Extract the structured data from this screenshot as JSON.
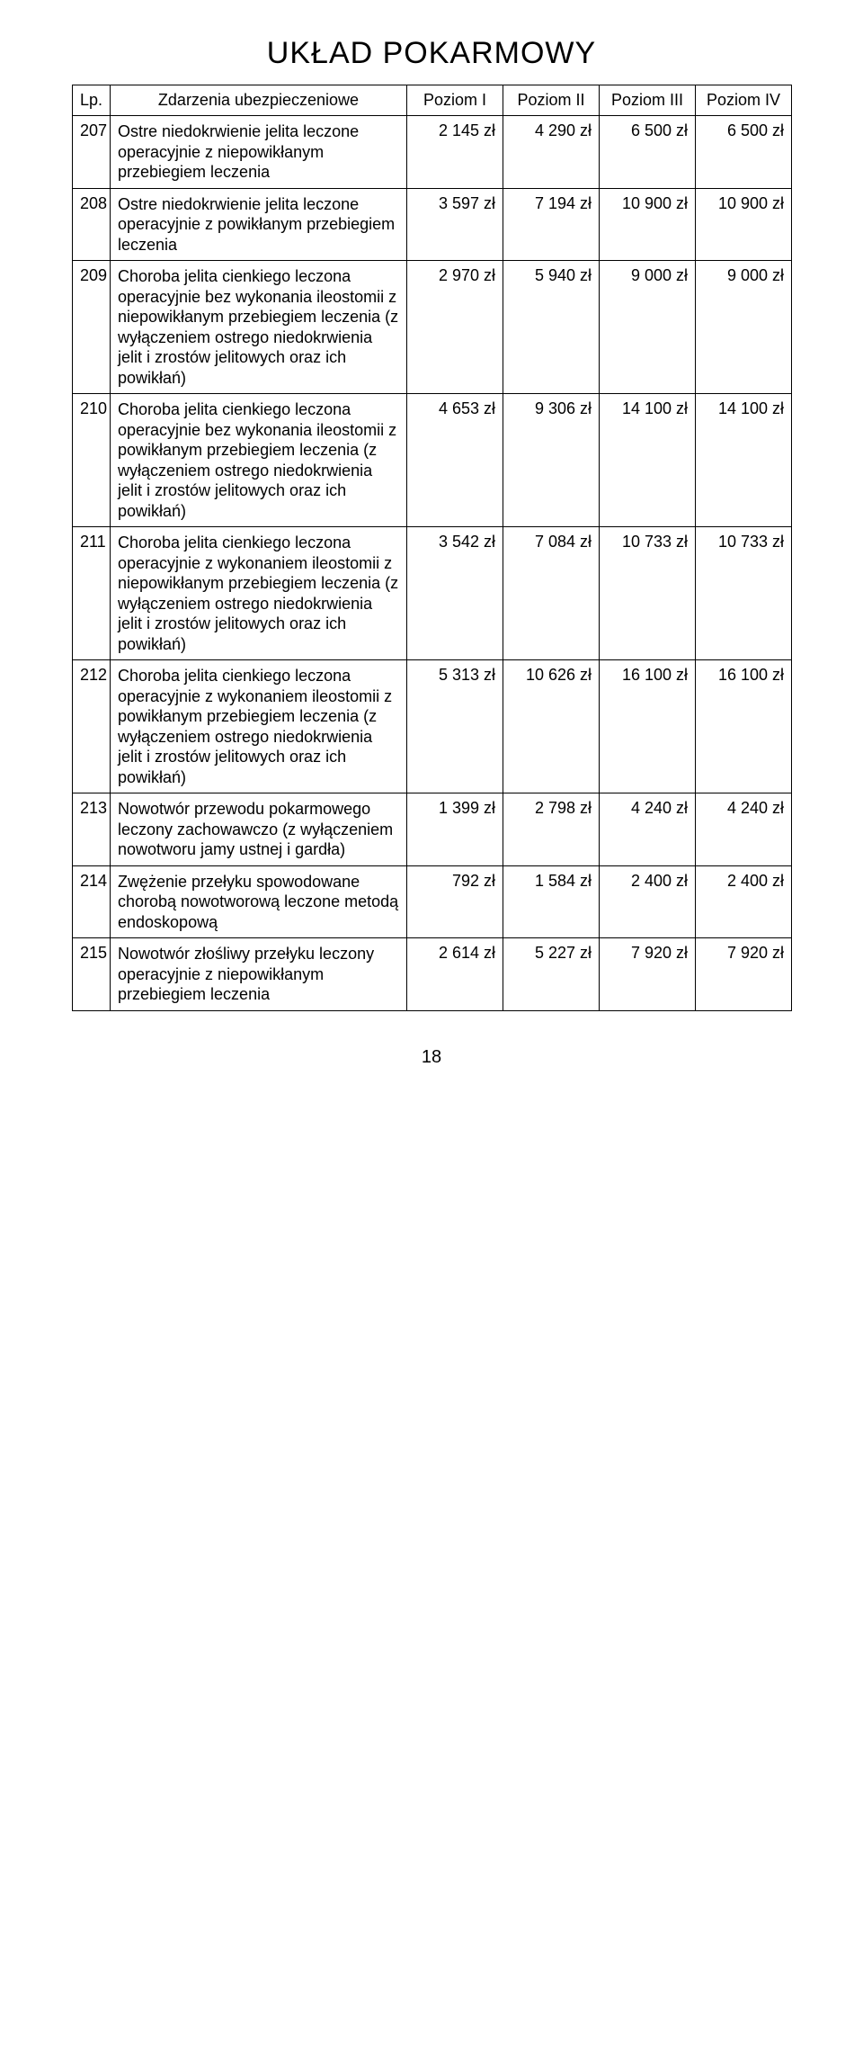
{
  "title": "UKŁAD POKARMOWY",
  "page_number": "18",
  "columns": {
    "lp": "Lp.",
    "desc": "Zdarzenia ubezpieczeniowe",
    "l1": "Poziom I",
    "l2": "Poziom II",
    "l3": "Poziom III",
    "l4": "Poziom IV"
  },
  "rows": [
    {
      "lp": "207",
      "desc": "Ostre niedokrwienie jelita leczone operacyjnie z niepowikłanym przebiegiem leczenia",
      "l1": "2 145 zł",
      "l2": "4 290 zł",
      "l3": "6 500 zł",
      "l4": "6 500 zł"
    },
    {
      "lp": "208",
      "desc": "Ostre niedokrwienie jelita leczone operacyjnie z powikłanym przebiegiem leczenia",
      "l1": "3 597 zł",
      "l2": "7 194 zł",
      "l3": "10 900 zł",
      "l4": "10 900 zł"
    },
    {
      "lp": "209",
      "desc": "Choroba jelita cienkiego leczona operacyjnie bez wykonania ileostomii z niepowikłanym przebiegiem leczenia (z wyłączeniem ostrego niedokrwienia jelit i zrostów jelitowych oraz ich powikłań)",
      "l1": "2 970 zł",
      "l2": "5 940 zł",
      "l3": "9 000 zł",
      "l4": "9 000 zł"
    },
    {
      "lp": "210",
      "desc": "Choroba jelita cienkiego leczona operacyjnie bez wykonania ileostomii z powikłanym przebiegiem leczenia (z wyłączeniem ostrego niedokrwienia jelit i zrostów jelitowych oraz ich powikłań)",
      "l1": "4 653 zł",
      "l2": "9 306 zł",
      "l3": "14 100 zł",
      "l4": "14 100 zł"
    },
    {
      "lp": "211",
      "desc": "Choroba jelita cienkiego leczona operacyjnie z wykonaniem ileostomii z niepowikłanym przebiegiem leczenia (z wyłączeniem ostrego niedokrwienia jelit i zrostów jelitowych oraz ich powikłań)",
      "l1": "3 542 zł",
      "l2": "7 084 zł",
      "l3": "10 733 zł",
      "l4": "10 733 zł"
    },
    {
      "lp": "212",
      "desc": "Choroba jelita cienkiego leczona operacyjnie z wykonaniem ileostomii z powikłanym przebiegiem leczenia (z wyłączeniem ostrego niedokrwienia jelit i zrostów jelitowych oraz ich powikłań)",
      "l1": "5 313 zł",
      "l2": "10 626 zł",
      "l3": "16 100 zł",
      "l4": "16 100 zł"
    },
    {
      "lp": "213",
      "desc": "Nowotwór przewodu pokarmowego leczony zachowawczo (z wyłączeniem nowotworu jamy ustnej i gardła)",
      "l1": "1 399 zł",
      "l2": "2 798 zł",
      "l3": "4 240 zł",
      "l4": "4 240 zł"
    },
    {
      "lp": "214",
      "desc": "Zwężenie przełyku spowodowane chorobą nowotworową leczone metodą endoskopową",
      "l1": "792 zł",
      "l2": "1 584 zł",
      "l3": "2 400 zł",
      "l4": "2 400 zł"
    },
    {
      "lp": "215",
      "desc": "Nowotwór złośliwy przełyku leczony operacyjnie z niepowikłanym przebiegiem leczenia",
      "l1": "2 614 zł",
      "l2": "5 227 zł",
      "l3": "7 920 zł",
      "l4": "7 920 zł"
    }
  ]
}
